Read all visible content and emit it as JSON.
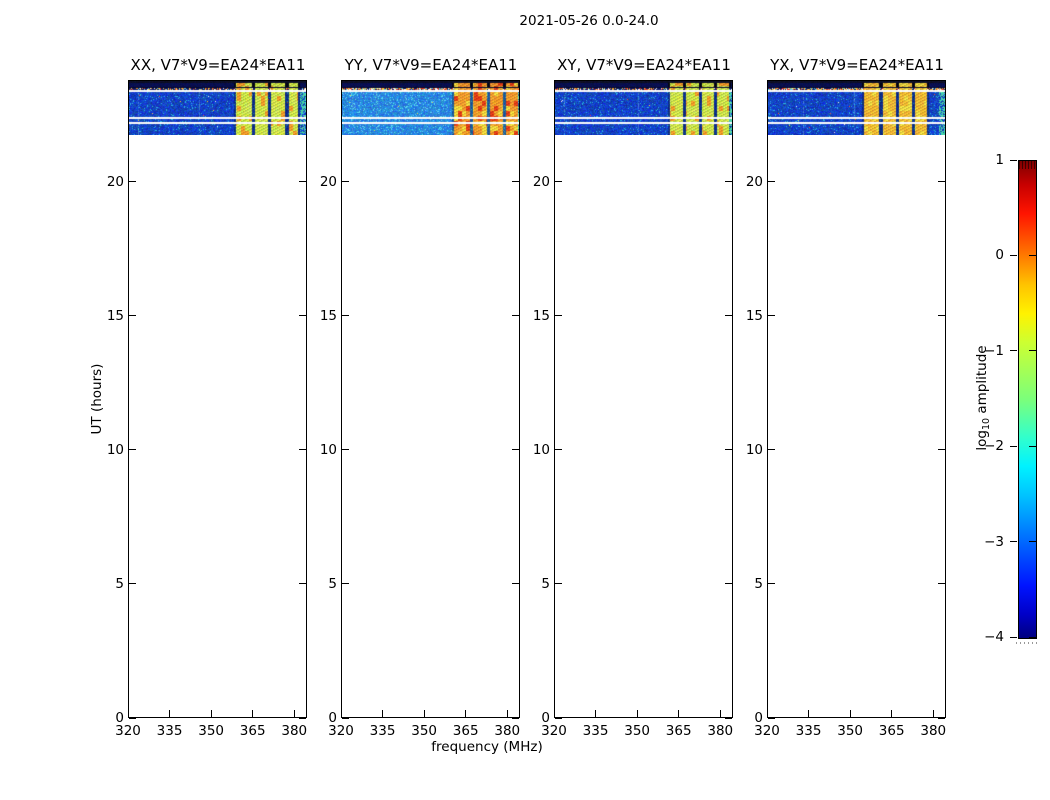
{
  "figure": {
    "title": "2021-05-26 0.0-24.0"
  },
  "axes": {
    "xlabel": "frequency (MHz)",
    "ylabel": "UT (hours)"
  },
  "panels": [
    {
      "title": "XX, V7*V9=EA24*EA11"
    },
    {
      "title": "YY, V7*V9=EA24*EA11"
    },
    {
      "title": "XY, V7*V9=EA24*EA11"
    },
    {
      "title": "YX, V7*V9=EA24*EA11"
    }
  ],
  "colorbar": {
    "label_pre": "log",
    "label_sub": "10",
    "label_post": "amplitude"
  },
  "chart_data": {
    "type": "heatmap",
    "title": "2021-05-26 0.0-24.0",
    "xlabel": "frequency (MHz)",
    "ylabel": "UT (hours)",
    "xlim": [
      320,
      384.6
    ],
    "xticks": [
      320,
      335,
      350,
      365,
      380
    ],
    "ylim": [
      0,
      23.8
    ],
    "yticks": [
      0,
      5,
      10,
      15,
      20
    ],
    "colorbar": {
      "label": "log10 amplitude",
      "range": [
        -4,
        1
      ],
      "ticks": [
        1,
        0,
        -1,
        -2,
        -3,
        -4
      ],
      "colormap": "jet"
    },
    "observation": {
      "date": "2021-05-26",
      "ut_range": [
        0.0,
        24.0
      ],
      "data_ut_extent": [
        21.95,
        23.78
      ]
    },
    "white_lines_ut": [
      23.42,
      22.42,
      22.23
    ],
    "panels": [
      {
        "title": "XX, V7*V9=EA24*EA11",
        "pol": "XX",
        "baseline": "V7*V9=EA24*EA11",
        "body": "deepblue",
        "rfi_style": "yellowgreen",
        "speckle_density": 0.45,
        "rfi_bands_mhz": [
          [
            358.9,
            364.4
          ],
          [
            365.5,
            370.5
          ],
          [
            371.6,
            376.4
          ],
          [
            377.8,
            381.1
          ]
        ]
      },
      {
        "title": "YY, V7*V9=EA24*EA11",
        "pol": "YY",
        "baseline": "V7*V9=EA24*EA11",
        "body": "cyanblue",
        "rfi_style": "orange",
        "speckle_density": 0.8,
        "rfi_bands_mhz": [
          [
            360.7,
            366.2
          ],
          [
            367.3,
            372.4
          ],
          [
            373.5,
            378.2
          ],
          [
            379.3,
            383.6
          ]
        ]
      },
      {
        "title": "XY, V7*V9=EA24*EA11",
        "pol": "XY",
        "baseline": "V7*V9=EA24*EA11",
        "body": "deepblue",
        "rfi_style": "yellowgreen",
        "speckle_density": 0.5,
        "rfi_bands_mhz": [
          [
            361.8,
            366.2
          ],
          [
            367.6,
            372.0
          ],
          [
            373.1,
            377.5
          ],
          [
            378.5,
            382.9
          ]
        ]
      },
      {
        "title": "YX, V7*V9=EA24*EA11",
        "pol": "YX",
        "baseline": "V7*V9=EA24*EA11",
        "body": "deepblue",
        "rfi_style": "orangeyellow",
        "speckle_density": 0.7,
        "rfi_bands_mhz": [
          [
            354.9,
            360.4
          ],
          [
            361.8,
            366.5
          ],
          [
            367.6,
            372.0
          ],
          [
            373.1,
            377.5
          ]
        ]
      }
    ]
  }
}
